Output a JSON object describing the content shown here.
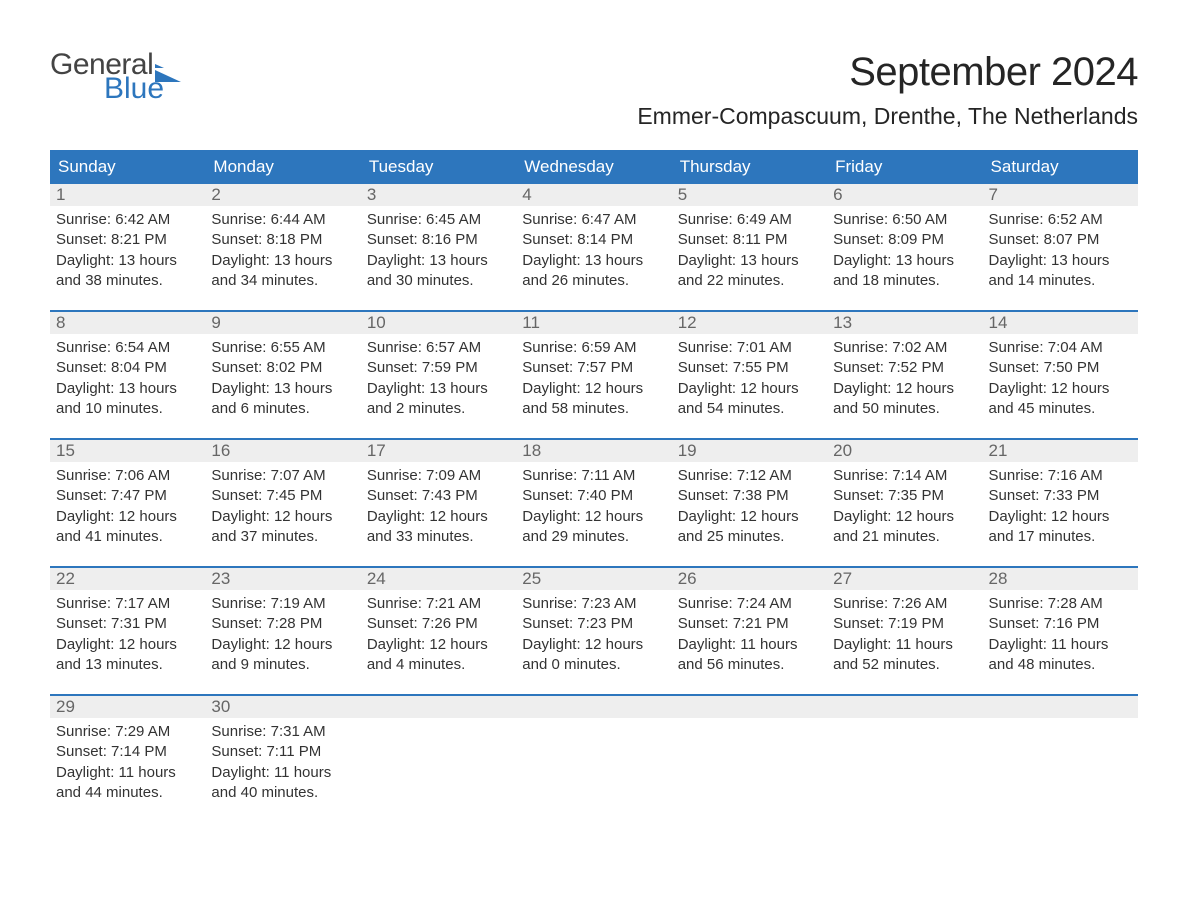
{
  "colors": {
    "header_bg": "#2d76bd",
    "header_text": "#ffffff",
    "daynum_bg": "#eeeeee",
    "daynum_text": "#666666",
    "body_text": "#333333",
    "week_border": "#2d76bd",
    "logo_gray": "#444444",
    "logo_blue": "#2d76bd",
    "page_bg": "#ffffff"
  },
  "fonts": {
    "family": "Arial, Helvetica, sans-serif",
    "month_title_size": 40,
    "location_size": 23,
    "dayhead_size": 17,
    "daynum_size": 17,
    "cell_size": 15
  },
  "logo": {
    "general": "General",
    "blue": "Blue"
  },
  "title": "September 2024",
  "location": "Emmer-Compascuum, Drenthe, The Netherlands",
  "day_names": [
    "Sunday",
    "Monday",
    "Tuesday",
    "Wednesday",
    "Thursday",
    "Friday",
    "Saturday"
  ],
  "weeks": [
    [
      {
        "n": "1",
        "sr": "Sunrise: 6:42 AM",
        "ss": "Sunset: 8:21 PM",
        "d1": "Daylight: 13 hours",
        "d2": "and 38 minutes."
      },
      {
        "n": "2",
        "sr": "Sunrise: 6:44 AM",
        "ss": "Sunset: 8:18 PM",
        "d1": "Daylight: 13 hours",
        "d2": "and 34 minutes."
      },
      {
        "n": "3",
        "sr": "Sunrise: 6:45 AM",
        "ss": "Sunset: 8:16 PM",
        "d1": "Daylight: 13 hours",
        "d2": "and 30 minutes."
      },
      {
        "n": "4",
        "sr": "Sunrise: 6:47 AM",
        "ss": "Sunset: 8:14 PM",
        "d1": "Daylight: 13 hours",
        "d2": "and 26 minutes."
      },
      {
        "n": "5",
        "sr": "Sunrise: 6:49 AM",
        "ss": "Sunset: 8:11 PM",
        "d1": "Daylight: 13 hours",
        "d2": "and 22 minutes."
      },
      {
        "n": "6",
        "sr": "Sunrise: 6:50 AM",
        "ss": "Sunset: 8:09 PM",
        "d1": "Daylight: 13 hours",
        "d2": "and 18 minutes."
      },
      {
        "n": "7",
        "sr": "Sunrise: 6:52 AM",
        "ss": "Sunset: 8:07 PM",
        "d1": "Daylight: 13 hours",
        "d2": "and 14 minutes."
      }
    ],
    [
      {
        "n": "8",
        "sr": "Sunrise: 6:54 AM",
        "ss": "Sunset: 8:04 PM",
        "d1": "Daylight: 13 hours",
        "d2": "and 10 minutes."
      },
      {
        "n": "9",
        "sr": "Sunrise: 6:55 AM",
        "ss": "Sunset: 8:02 PM",
        "d1": "Daylight: 13 hours",
        "d2": "and 6 minutes."
      },
      {
        "n": "10",
        "sr": "Sunrise: 6:57 AM",
        "ss": "Sunset: 7:59 PM",
        "d1": "Daylight: 13 hours",
        "d2": "and 2 minutes."
      },
      {
        "n": "11",
        "sr": "Sunrise: 6:59 AM",
        "ss": "Sunset: 7:57 PM",
        "d1": "Daylight: 12 hours",
        "d2": "and 58 minutes."
      },
      {
        "n": "12",
        "sr": "Sunrise: 7:01 AM",
        "ss": "Sunset: 7:55 PM",
        "d1": "Daylight: 12 hours",
        "d2": "and 54 minutes."
      },
      {
        "n": "13",
        "sr": "Sunrise: 7:02 AM",
        "ss": "Sunset: 7:52 PM",
        "d1": "Daylight: 12 hours",
        "d2": "and 50 minutes."
      },
      {
        "n": "14",
        "sr": "Sunrise: 7:04 AM",
        "ss": "Sunset: 7:50 PM",
        "d1": "Daylight: 12 hours",
        "d2": "and 45 minutes."
      }
    ],
    [
      {
        "n": "15",
        "sr": "Sunrise: 7:06 AM",
        "ss": "Sunset: 7:47 PM",
        "d1": "Daylight: 12 hours",
        "d2": "and 41 minutes."
      },
      {
        "n": "16",
        "sr": "Sunrise: 7:07 AM",
        "ss": "Sunset: 7:45 PM",
        "d1": "Daylight: 12 hours",
        "d2": "and 37 minutes."
      },
      {
        "n": "17",
        "sr": "Sunrise: 7:09 AM",
        "ss": "Sunset: 7:43 PM",
        "d1": "Daylight: 12 hours",
        "d2": "and 33 minutes."
      },
      {
        "n": "18",
        "sr": "Sunrise: 7:11 AM",
        "ss": "Sunset: 7:40 PM",
        "d1": "Daylight: 12 hours",
        "d2": "and 29 minutes."
      },
      {
        "n": "19",
        "sr": "Sunrise: 7:12 AM",
        "ss": "Sunset: 7:38 PM",
        "d1": "Daylight: 12 hours",
        "d2": "and 25 minutes."
      },
      {
        "n": "20",
        "sr": "Sunrise: 7:14 AM",
        "ss": "Sunset: 7:35 PM",
        "d1": "Daylight: 12 hours",
        "d2": "and 21 minutes."
      },
      {
        "n": "21",
        "sr": "Sunrise: 7:16 AM",
        "ss": "Sunset: 7:33 PM",
        "d1": "Daylight: 12 hours",
        "d2": "and 17 minutes."
      }
    ],
    [
      {
        "n": "22",
        "sr": "Sunrise: 7:17 AM",
        "ss": "Sunset: 7:31 PM",
        "d1": "Daylight: 12 hours",
        "d2": "and 13 minutes."
      },
      {
        "n": "23",
        "sr": "Sunrise: 7:19 AM",
        "ss": "Sunset: 7:28 PM",
        "d1": "Daylight: 12 hours",
        "d2": "and 9 minutes."
      },
      {
        "n": "24",
        "sr": "Sunrise: 7:21 AM",
        "ss": "Sunset: 7:26 PM",
        "d1": "Daylight: 12 hours",
        "d2": "and 4 minutes."
      },
      {
        "n": "25",
        "sr": "Sunrise: 7:23 AM",
        "ss": "Sunset: 7:23 PM",
        "d1": "Daylight: 12 hours",
        "d2": "and 0 minutes."
      },
      {
        "n": "26",
        "sr": "Sunrise: 7:24 AM",
        "ss": "Sunset: 7:21 PM",
        "d1": "Daylight: 11 hours",
        "d2": "and 56 minutes."
      },
      {
        "n": "27",
        "sr": "Sunrise: 7:26 AM",
        "ss": "Sunset: 7:19 PM",
        "d1": "Daylight: 11 hours",
        "d2": "and 52 minutes."
      },
      {
        "n": "28",
        "sr": "Sunrise: 7:28 AM",
        "ss": "Sunset: 7:16 PM",
        "d1": "Daylight: 11 hours",
        "d2": "and 48 minutes."
      }
    ],
    [
      {
        "n": "29",
        "sr": "Sunrise: 7:29 AM",
        "ss": "Sunset: 7:14 PM",
        "d1": "Daylight: 11 hours",
        "d2": "and 44 minutes."
      },
      {
        "n": "30",
        "sr": "Sunrise: 7:31 AM",
        "ss": "Sunset: 7:11 PM",
        "d1": "Daylight: 11 hours",
        "d2": "and 40 minutes."
      },
      {
        "empty": true
      },
      {
        "empty": true
      },
      {
        "empty": true
      },
      {
        "empty": true
      },
      {
        "empty": true
      }
    ]
  ]
}
